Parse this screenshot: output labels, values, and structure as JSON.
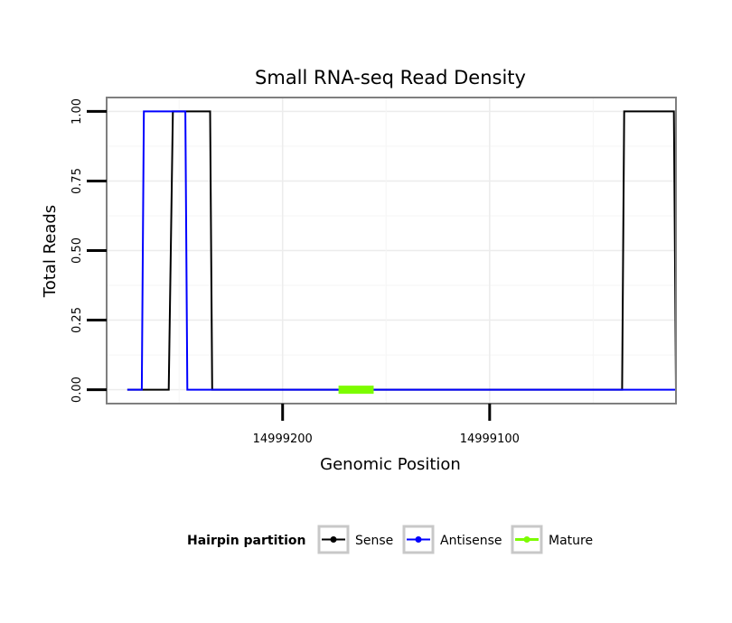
{
  "chart_data": {
    "type": "line",
    "title": "Small RNA-seq Read Density",
    "xlabel": "Genomic Position",
    "ylabel": "Total Reads",
    "x_reversed": true,
    "xlim": [
      14999285,
      14999010
    ],
    "ylim": [
      -0.05,
      1.05
    ],
    "x_ticks": [
      14999200,
      14999100
    ],
    "x_tick_labels": [
      "14999200",
      "14999100"
    ],
    "y_ticks": [
      0.0,
      0.25,
      0.5,
      0.75,
      1.0
    ],
    "y_tick_labels": [
      "0.00",
      "0.25",
      "0.50",
      "0.75",
      "1.00"
    ],
    "grid": true,
    "series": [
      {
        "name": "Sense",
        "color": "#000000",
        "x": [
          14999275,
          14999255,
          14999253,
          14999235,
          14999234,
          14999218,
          14999217,
          14999036,
          14999035,
          14999011,
          14999010
        ],
        "y": [
          0,
          0,
          1,
          1,
          0,
          0,
          0,
          0,
          1,
          1,
          0
        ]
      },
      {
        "name": "Antisense",
        "color": "#0000ff",
        "x": [
          14999275,
          14999268,
          14999267,
          14999247,
          14999246,
          14999218,
          14999217,
          14999036,
          14999035,
          14999011,
          14999010
        ],
        "y": [
          0,
          0,
          1,
          1,
          0,
          0,
          0,
          0,
          0,
          0,
          0
        ]
      },
      {
        "name": "Mature",
        "color": "#7cfc00",
        "x": [
          14999173,
          14999156
        ],
        "y": [
          0,
          0
        ]
      }
    ],
    "legend": {
      "title": "Hairpin partition",
      "position": "bottom",
      "entries": [
        "Sense",
        "Antisense",
        "Mature"
      ]
    }
  }
}
